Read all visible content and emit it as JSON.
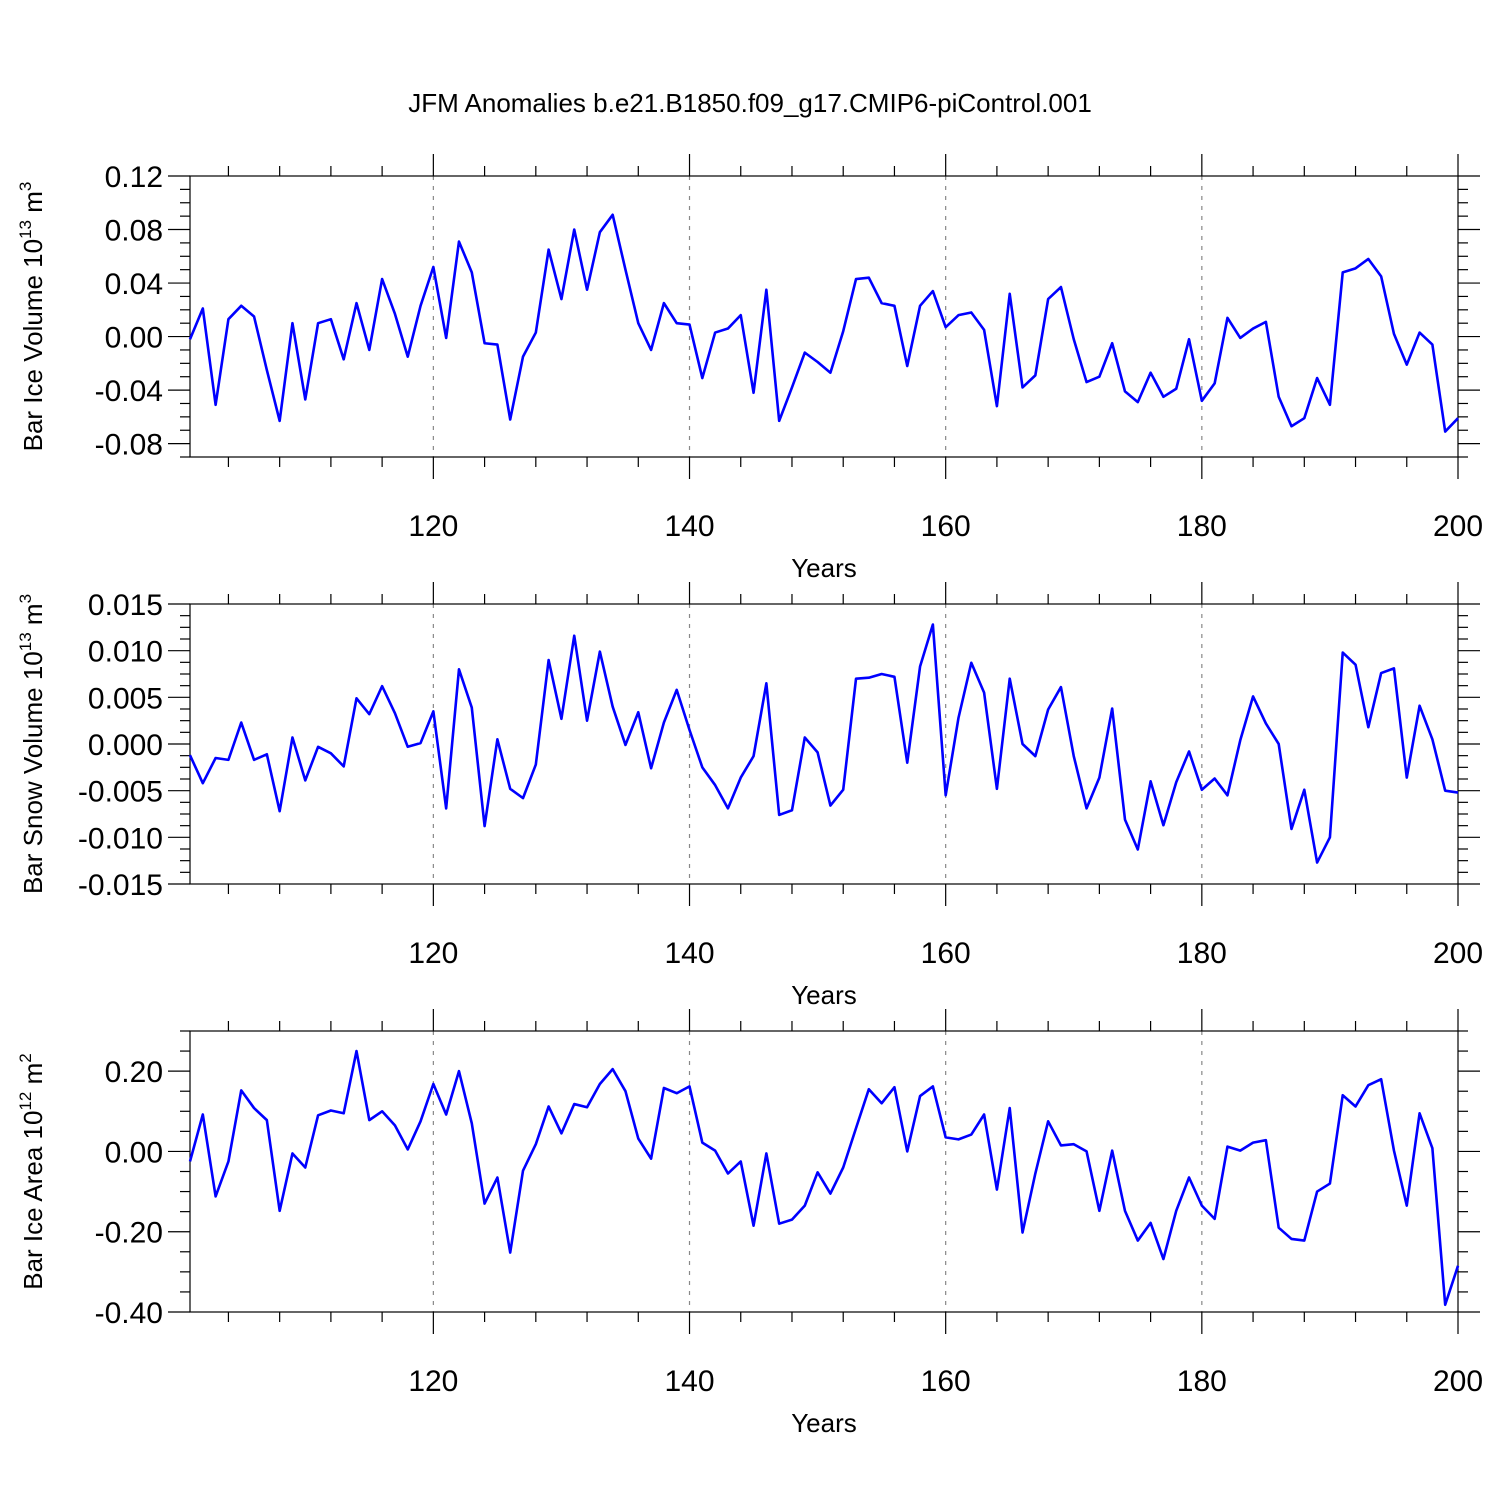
{
  "title": "JFM Anomalies b.e21.B1850.f09_g17.CMIP6-piControl.001",
  "colors": {
    "line": "#0000ff",
    "axis": "#000000",
    "grid": "#888888"
  },
  "chart_data": [
    {
      "type": "line",
      "xlabel": "Years",
      "ylabel": {
        "main": "Bar Ice Volume 10",
        "sup": "13",
        "unit": " m",
        "unit_sup": "3"
      },
      "xlim": [
        101,
        200
      ],
      "ylim": [
        -0.09,
        0.12
      ],
      "xticks": [
        "120",
        "140",
        "160",
        "180",
        "200"
      ],
      "yticks": [
        "0.12",
        "0.08",
        "0.04",
        "0.00",
        "-0.04",
        "-0.08"
      ],
      "series": [
        {
          "name": "Bar Ice Volume",
          "x_start": 101,
          "values": [
            -0.002,
            0.021,
            -0.051,
            0.013,
            0.023,
            0.015,
            -0.025,
            -0.063,
            0.01,
            -0.047,
            0.01,
            0.013,
            -0.017,
            0.025,
            -0.01,
            0.043,
            0.017,
            -0.015,
            0.023,
            0.052,
            -0.001,
            0.071,
            0.048,
            -0.005,
            -0.006,
            -0.062,
            -0.015,
            0.003,
            0.065,
            0.028,
            0.08,
            0.035,
            0.078,
            0.091,
            0.05,
            0.01,
            -0.01,
            0.025,
            0.01,
            0.009,
            -0.031,
            0.003,
            0.006,
            0.016,
            -0.042,
            0.035,
            -0.063,
            -0.038,
            -0.012,
            -0.019,
            -0.027,
            0.004,
            0.043,
            0.044,
            0.025,
            0.023,
            -0.022,
            0.023,
            0.034,
            0.007,
            0.016,
            0.018,
            0.005,
            -0.052,
            0.032,
            -0.038,
            -0.029,
            0.028,
            0.037,
            -0.002,
            -0.034,
            -0.03,
            -0.005,
            -0.041,
            -0.049,
            -0.027,
            -0.045,
            -0.039,
            -0.002,
            -0.048,
            -0.035,
            0.014,
            -0.001,
            0.006,
            0.011,
            -0.045,
            -0.067,
            -0.061,
            -0.031,
            -0.051,
            0.048,
            0.051,
            0.058,
            0.045,
            0.002,
            -0.021,
            0.003,
            -0.006,
            -0.071,
            -0.061
          ]
        }
      ]
    },
    {
      "type": "line",
      "xlabel": "Years",
      "ylabel": {
        "main": "Bar Snow Volume 10",
        "sup": "13",
        "unit": " m",
        "unit_sup": "3"
      },
      "xlim": [
        101,
        200
      ],
      "ylim": [
        -0.015,
        0.015
      ],
      "xticks": [
        "120",
        "140",
        "160",
        "180",
        "200"
      ],
      "yticks": [
        "0.015",
        "0.010",
        "0.005",
        "0.000",
        "-0.005",
        "-0.010",
        "-0.015"
      ],
      "series": [
        {
          "name": "Bar Snow Volume",
          "x_start": 101,
          "values": [
            -0.0012,
            -0.0042,
            -0.0015,
            -0.0017,
            0.0023,
            -0.0017,
            -0.0011,
            -0.0072,
            0.0007,
            -0.0039,
            -0.0003,
            -0.001,
            -0.0024,
            0.0049,
            0.0032,
            0.0062,
            0.0033,
            -0.0003,
            0.0001,
            0.0035,
            -0.0069,
            0.008,
            0.0039,
            -0.0088,
            0.0005,
            -0.0048,
            -0.0058,
            -0.0022,
            0.009,
            0.0027,
            0.0116,
            0.0025,
            0.0099,
            0.004,
            -0.0001,
            0.0034,
            -0.0026,
            0.0023,
            0.0058,
            0.0015,
            -0.0025,
            -0.0044,
            -0.0069,
            -0.0036,
            -0.0013,
            0.0065,
            -0.0076,
            -0.0071,
            0.0007,
            -0.0009,
            -0.0066,
            -0.0049,
            0.007,
            0.0071,
            0.0075,
            0.0072,
            -0.002,
            0.0083,
            0.0128,
            -0.0055,
            0.0028,
            0.0087,
            0.0055,
            -0.0048,
            0.007,
            0.0,
            -0.0013,
            0.0037,
            0.0061,
            -0.0013,
            -0.0069,
            -0.0036,
            0.0038,
            -0.0081,
            -0.0113,
            -0.004,
            -0.0087,
            -0.0041,
            -0.0008,
            -0.0049,
            -0.0037,
            -0.0055,
            0.0004,
            0.0051,
            0.0022,
            0.0,
            -0.0091,
            -0.0049,
            -0.0127,
            -0.01,
            0.0098,
            0.0085,
            0.0018,
            0.0076,
            0.0081,
            -0.0036,
            0.0041,
            0.0005,
            -0.005,
            -0.0052
          ]
        }
      ]
    },
    {
      "type": "line",
      "xlabel": "Years",
      "ylabel": {
        "main": "Bar Ice Area 10",
        "sup": "12",
        "unit": " m",
        "unit_sup": "2"
      },
      "xlim": [
        101,
        200
      ],
      "ylim": [
        -0.4,
        0.3
      ],
      "xticks": [
        "120",
        "140",
        "160",
        "180",
        "200"
      ],
      "yticks": [
        "0.20",
        "0.00",
        "-0.20",
        "-0.40"
      ],
      "series": [
        {
          "name": "Bar Ice Area",
          "x_start": 101,
          "values": [
            -0.025,
            0.092,
            -0.112,
            -0.025,
            0.152,
            0.108,
            0.078,
            -0.148,
            -0.005,
            -0.04,
            0.09,
            0.102,
            0.095,
            0.25,
            0.078,
            0.1,
            0.065,
            0.005,
            0.075,
            0.168,
            0.092,
            0.2,
            0.07,
            -0.13,
            -0.065,
            -0.252,
            -0.048,
            0.018,
            0.112,
            0.045,
            0.118,
            0.11,
            0.168,
            0.205,
            0.15,
            0.032,
            -0.018,
            0.158,
            0.145,
            0.162,
            0.022,
            0.002,
            -0.055,
            -0.025,
            -0.185,
            -0.005,
            -0.18,
            -0.17,
            -0.135,
            -0.052,
            -0.105,
            -0.04,
            0.058,
            0.155,
            0.12,
            0.16,
            0.0,
            0.138,
            0.162,
            0.035,
            0.03,
            0.042,
            0.092,
            -0.095,
            0.108,
            -0.202,
            -0.055,
            0.075,
            0.015,
            0.018,
            0.0,
            -0.148,
            0.002,
            -0.148,
            -0.222,
            -0.178,
            -0.268,
            -0.148,
            -0.065,
            -0.135,
            -0.168,
            0.012,
            0.002,
            0.022,
            0.028,
            -0.19,
            -0.218,
            -0.222,
            -0.1,
            -0.08,
            0.14,
            0.112,
            0.165,
            0.18,
            0.002,
            -0.135,
            0.095,
            0.008,
            -0.382,
            -0.285
          ]
        }
      ]
    }
  ]
}
